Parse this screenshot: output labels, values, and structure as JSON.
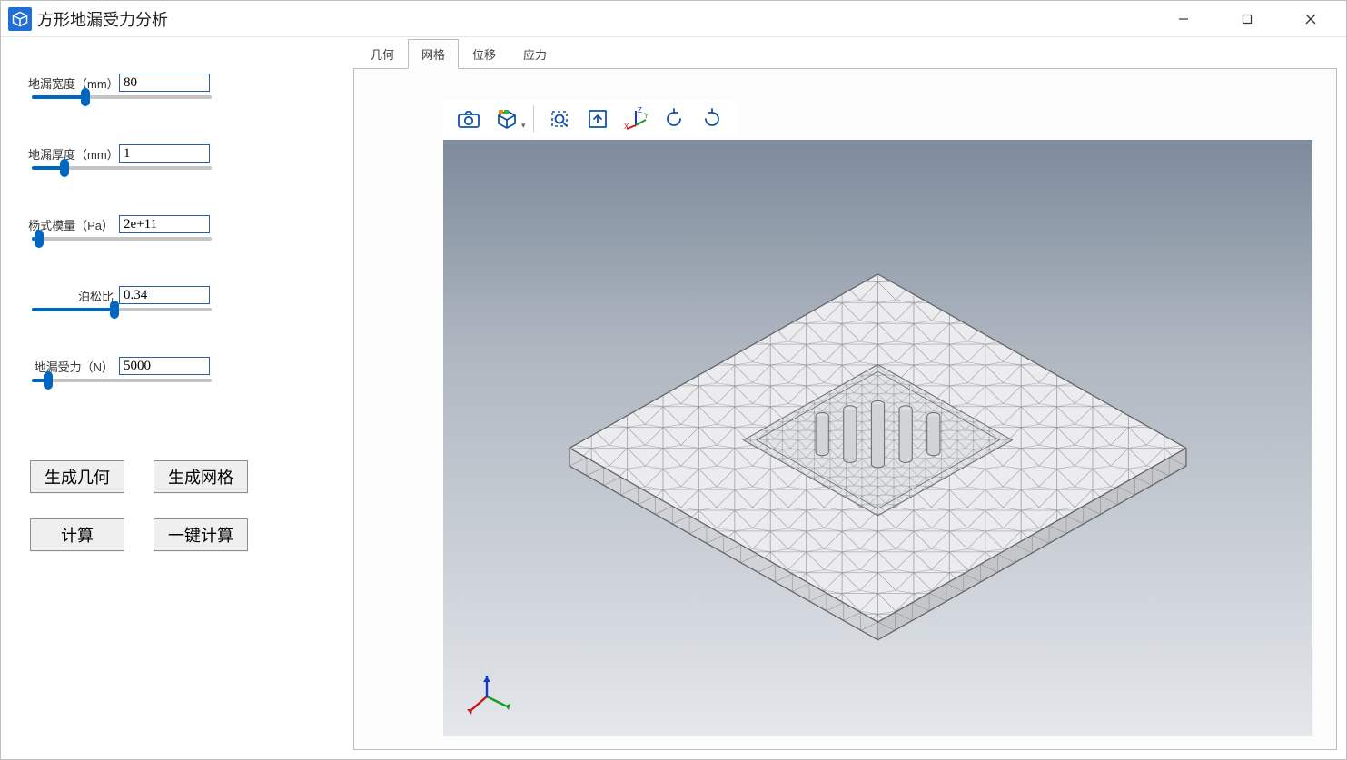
{
  "window": {
    "title": "方形地漏受力分析",
    "icon_color": "#1f6fd6"
  },
  "params": [
    {
      "label": "地漏宽度（mm）",
      "value": "80",
      "slider_pct": 30
    },
    {
      "label": "地漏厚度（mm）",
      "value": "1",
      "slider_pct": 18
    },
    {
      "label": "杨式模量（Pa）",
      "value": "2e+11",
      "slider_pct": 4
    },
    {
      "label": "泊松比",
      "value": "0.34",
      "slider_pct": 46
    },
    {
      "label": "地漏受力（N）",
      "value": "5000",
      "slider_pct": 9
    }
  ],
  "buttons": {
    "gen_geometry": "生成几何",
    "gen_mesh": "生成网格",
    "compute": "计算",
    "one_click": "一键计算"
  },
  "tabs": [
    {
      "label": "几何",
      "active": false
    },
    {
      "label": "网格",
      "active": true
    },
    {
      "label": "位移",
      "active": false
    },
    {
      "label": "应力",
      "active": false
    }
  ],
  "viewer_toolbar": [
    {
      "name": "screenshot-icon",
      "kind": "camera"
    },
    {
      "name": "display-mode-icon",
      "kind": "cube",
      "dropdown": true
    },
    {
      "name": "separator"
    },
    {
      "name": "fit-selection-icon",
      "kind": "fit-dash"
    },
    {
      "name": "fit-all-icon",
      "kind": "fit-solid"
    },
    {
      "name": "axes-icon",
      "kind": "axes"
    },
    {
      "name": "rotate-left-icon",
      "kind": "rot-l"
    },
    {
      "name": "rotate-right-icon",
      "kind": "rot-r"
    }
  ],
  "viewer": {
    "bg_top": "#7d8b9b",
    "bg_bottom": "#e4e7eb",
    "mesh_line_color": "#8a8d92",
    "mesh_fill_color": "#ececee",
    "axis_x_color": "#c91717",
    "axis_y_color": "#1a9b26",
    "axis_z_color": "#1439c9",
    "axis_labels": {
      "x": "X",
      "y": "Y",
      "z": "Z"
    }
  }
}
